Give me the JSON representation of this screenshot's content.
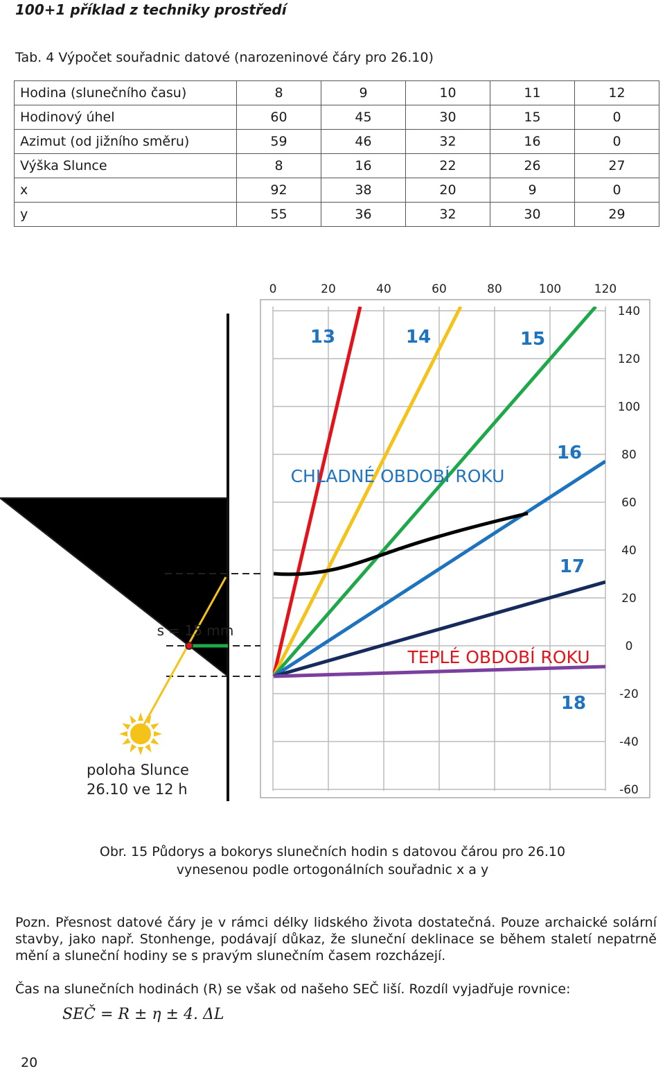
{
  "header": "100+1 příklad z techniky prostředí",
  "table_caption": "Tab. 4 Výpočet souřadnic datové (narozeninové čáry pro 26.10)",
  "table": {
    "rows": [
      {
        "label": "Hodina (slunečního času)",
        "values": [
          "8",
          "9",
          "10",
          "11",
          "12"
        ]
      },
      {
        "label": "Hodinový úhel",
        "values": [
          "60",
          "45",
          "30",
          "15",
          "0"
        ]
      },
      {
        "label": "Azimut (od jižního směru)",
        "values": [
          "59",
          "46",
          "32",
          "16",
          "0"
        ]
      },
      {
        "label": "Výška Slunce",
        "values": [
          "8",
          "16",
          "22",
          "26",
          "27"
        ]
      },
      {
        "label": "x",
        "values": [
          "92",
          "38",
          "20",
          "9",
          "0"
        ]
      },
      {
        "label": "y",
        "values": [
          "55",
          "36",
          "32",
          "30",
          "29"
        ]
      }
    ]
  },
  "figure": {
    "x_ticks": [
      "0",
      "20",
      "40",
      "60",
      "80",
      "100",
      "120"
    ],
    "y_ticks": [
      "140",
      "120",
      "100",
      "80",
      "60",
      "40",
      "20",
      "0",
      "-20",
      "-40",
      "-60"
    ],
    "hour_labels": [
      "13",
      "14",
      "15",
      "16",
      "17",
      "18"
    ],
    "cold_label": "CHLADNÉ OBDOBÍ ROKU",
    "warm_label": "TEPLÉ OBDOBÍ ROKU",
    "gnomon_label": "s = 15 mm",
    "sun_label_1": "poloha Slunce",
    "sun_label_2": "26.10 ve 12 h",
    "colors": {
      "h13": "#e3131b",
      "h14": "#f5c21a",
      "h15": "#1ea84a",
      "h16": "#1e73be",
      "h17": "#162a5c",
      "h18": "#7b3f9e",
      "date_line": "#000000",
      "shadow": "#d6cfb8",
      "label_blue": "#1e73be",
      "label_red": "#e3131b"
    }
  },
  "figure_caption_1": "Obr. 15 Půdorys a bokorys slunečních hodin s datovou čárou pro 26.10",
  "figure_caption_2": "vynesenou podle ortogonálních souřadnic x a y",
  "note": "Pozn. Přesnost datové čáry je v rámci délky lidského života dostatečná. Pouze archaické solární stavby, jako např. Stonhenge, podávají důkaz, že sluneční deklinace se během staletí nepatrně mění a sluneční hodiny se s pravým slunečním časem rozcházejí.",
  "time_note": "Čas na slunečních hodinách (R) se však od našeho SEČ liší. Rozdíl vyjadřuje rovnice:",
  "formula": "SEČ = R ± η ± 4. ΔL",
  "page_number": "20"
}
